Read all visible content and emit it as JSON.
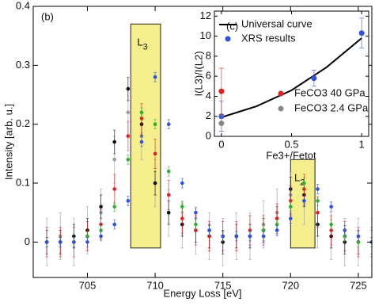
{
  "chart_data": [
    {
      "type": "scatter",
      "panel_label": "(b)",
      "x_label": "Energy Loss [eV]",
      "y_label": "Intensity [arb. u.]",
      "xlim": [
        701,
        726
      ],
      "ylim": [
        -0.06,
        0.4
      ],
      "xticks": [
        705,
        710,
        715,
        720,
        725
      ],
      "yticks": [
        0,
        0.1,
        0.2,
        0.3,
        0.4
      ],
      "regions": [
        {
          "label": "L",
          "subscript": "3",
          "color": "#f5ee8c",
          "x": [
            708.2,
            710.4
          ],
          "y": [
            -0.01,
            0.37
          ]
        },
        {
          "label": "L",
          "subscript": "2",
          "color": "#f5ee8c",
          "x": [
            720,
            721.8
          ],
          "y": [
            -0.01,
            0.14
          ]
        }
      ],
      "x": [
        702,
        703,
        704,
        705,
        706,
        707,
        708,
        709,
        710,
        711,
        712,
        713,
        714,
        715,
        716,
        717,
        718,
        719,
        720,
        721,
        722,
        723,
        724,
        725,
        726
      ],
      "series": [
        {
          "color": "#999999",
          "values": [
            0,
            0.01,
            0,
            0.02,
            0.05,
            0.14,
            0.22,
            0.18,
            0.1,
            0.05,
            0.03,
            0.02,
            0.01,
            0,
            0.01,
            0.01,
            0.03,
            0.05,
            0.08,
            0.07,
            0.03,
            0.01,
            0,
            0,
            0
          ],
          "errors": [
            0.04,
            0.04,
            0.04,
            0.04,
            0.04,
            0.04,
            0.04,
            0.04,
            0.04,
            0.04,
            0.04,
            0.04,
            0.04,
            0.04,
            0.04,
            0.04,
            0.04,
            0.04,
            0.04,
            0.04,
            0.04,
            0.04,
            0.04,
            0.04,
            0.04
          ]
        },
        {
          "color": "#111111",
          "values": [
            0,
            0,
            0.01,
            0.02,
            0.06,
            0.17,
            0.26,
            0.2,
            0.1,
            0.05,
            0.03,
            0.02,
            0.01,
            0,
            0.01,
            0.01,
            0.02,
            0.04,
            0.09,
            0.08,
            0.03,
            0.01,
            0,
            0,
            0
          ],
          "errors": [
            0.02,
            0.02,
            0.02,
            0.02,
            0.02,
            0.02,
            0.02,
            0.02,
            0.02,
            0.02,
            0.02,
            0.02,
            0.02,
            0.02,
            0.02,
            0.02,
            0.02,
            0.02,
            0.02,
            0.02,
            0.02,
            0.02,
            0.02,
            0.02,
            0.02
          ]
        },
        {
          "color": "#e02020",
          "values": [
            0,
            0,
            0,
            0.01,
            0.03,
            0.09,
            0.18,
            0.21,
            0.15,
            0.08,
            0.04,
            0.02,
            0.01,
            0.01,
            0.01,
            0.02,
            0.02,
            0.04,
            0.07,
            0.09,
            0.05,
            0.02,
            0.01,
            0,
            0
          ],
          "errors": [
            0.025,
            0.025,
            0.025,
            0.025,
            0.025,
            0.025,
            0.025,
            0.025,
            0.025,
            0.025,
            0.025,
            0.025,
            0.025,
            0.025,
            0.025,
            0.025,
            0.025,
            0.025,
            0.025,
            0.025,
            0.025,
            0.025,
            0.025,
            0.025,
            0.025
          ]
        },
        {
          "color": "#30b030",
          "values": [
            0,
            0,
            0,
            0.01,
            0.02,
            0.06,
            0.14,
            0.22,
            0.2,
            0.12,
            0.06,
            0.03,
            0.02,
            0.01,
            0.01,
            0.01,
            0.02,
            0.03,
            0.06,
            0.1,
            0.07,
            0.03,
            0.01,
            0,
            0
          ],
          "errors": [
            0.008,
            0.008,
            0.008,
            0.008,
            0.008,
            0.008,
            0.008,
            0.008,
            0.008,
            0.008,
            0.008,
            0.008,
            0.008,
            0.008,
            0.008,
            0.008,
            0.008,
            0.008,
            0.008,
            0.008,
            0.008,
            0.008,
            0.008,
            0.008,
            0.008
          ]
        },
        {
          "color": "#3050e0",
          "values": [
            0,
            0,
            0,
            0,
            0.01,
            0.03,
            0.07,
            0.17,
            0.28,
            0.2,
            0.1,
            0.05,
            0.02,
            0.01,
            0.01,
            0.01,
            0.01,
            0.02,
            0.04,
            0.07,
            0.09,
            0.06,
            0.02,
            0.01,
            0
          ],
          "errors": [
            0.008,
            0.008,
            0.008,
            0.008,
            0.008,
            0.008,
            0.008,
            0.008,
            0.008,
            0.008,
            0.008,
            0.008,
            0.008,
            0.008,
            0.008,
            0.008,
            0.008,
            0.008,
            0.008,
            0.008,
            0.008,
            0.008,
            0.008,
            0.008,
            0.008
          ]
        }
      ]
    },
    {
      "type": "scatter",
      "panel_label": "(c)",
      "x_label": "Fe3+/Fetot",
      "y_label": "I(L3)/I(L2)",
      "xlim": [
        -0.05,
        1.05
      ],
      "ylim": [
        0,
        12.5
      ],
      "xticks": [
        0,
        0.5,
        1
      ],
      "yticks": [
        0,
        2,
        4,
        6,
        8,
        10,
        12
      ],
      "series": [
        {
          "name": "Universal curve",
          "kind": "line",
          "color": "#000000",
          "x": [
            0,
            0.25,
            0.5,
            0.75,
            1
          ],
          "values": [
            1.9,
            3,
            4.6,
            6.9,
            9.8
          ]
        },
        {
          "name": "XRS results",
          "color": "#3050e0",
          "x": [
            0,
            0.66,
            1
          ],
          "values": [
            2,
            5.8,
            10.3
          ],
          "errors": [
            1.5,
            0.8,
            1.5
          ]
        },
        {
          "name": "FeCO3 40 GPa",
          "color": "#e02020",
          "x": [
            0
          ],
          "values": [
            4.5
          ],
          "errors": [
            2.3
          ]
        },
        {
          "name": "FeCO3 2.4 GPa",
          "color": "#888888",
          "x": [
            0
          ],
          "values": [
            1.3
          ],
          "errors": [
            0.8
          ]
        }
      ]
    }
  ]
}
